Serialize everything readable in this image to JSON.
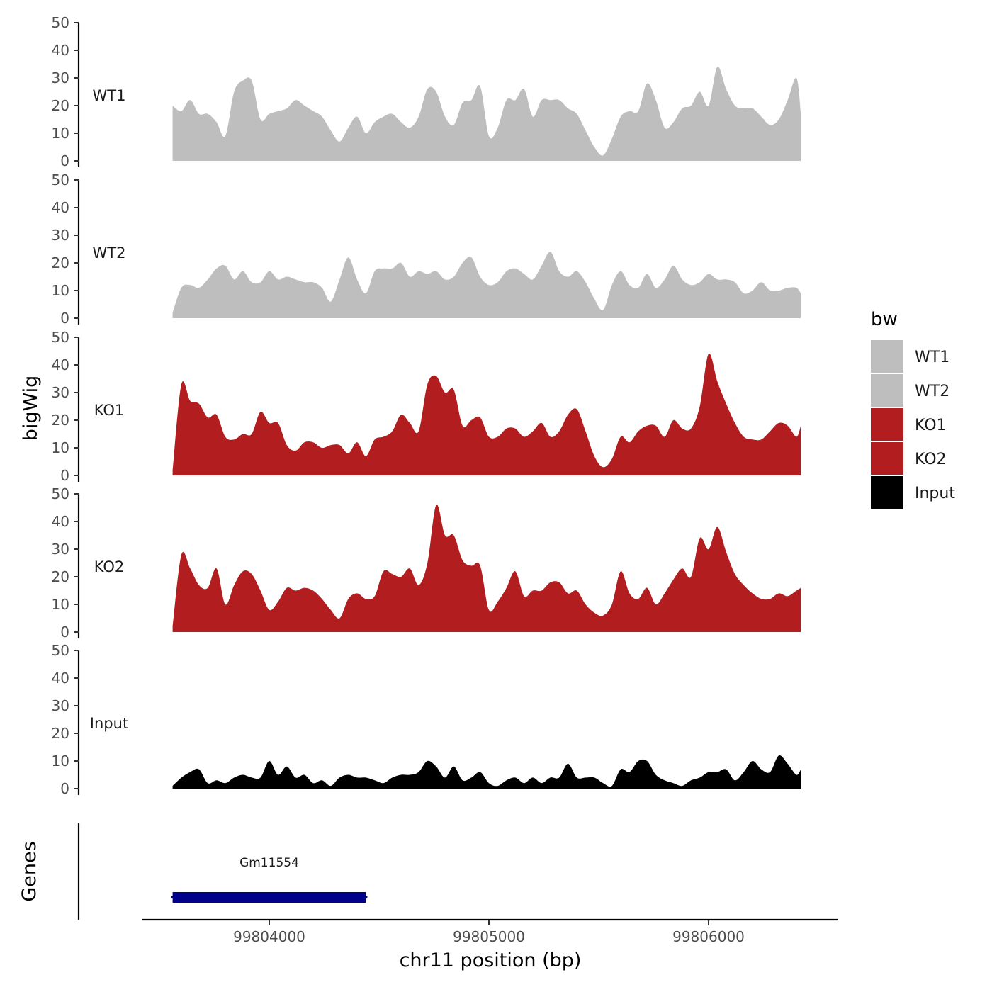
{
  "chart_data": {
    "type": "area",
    "xlabel": "chr11 position (bp)",
    "ylabel": "bigWig",
    "gene_panel_label": "Genes",
    "x_range": [
      99803550,
      99806430
    ],
    "x_ticks": [
      99804000,
      99805000,
      99806000
    ],
    "x_tick_labels": [
      "99804000",
      "99805000",
      "99806000"
    ],
    "ylim": [
      0,
      50
    ],
    "y_ticks": [
      0,
      10,
      20,
      30,
      40,
      50
    ],
    "y_tick_labels": [
      "0",
      "10",
      "20",
      "30",
      "40",
      "50"
    ],
    "legend": {
      "title": "bw",
      "position": "right",
      "items": [
        {
          "label": "WT1",
          "color": "#bebebe"
        },
        {
          "label": "WT2",
          "color": "#bebebe"
        },
        {
          "label": "KO1",
          "color": "#b21e20"
        },
        {
          "label": "KO2",
          "color": "#b21e20"
        },
        {
          "label": "Input",
          "color": "#000000"
        }
      ]
    },
    "x": [
      99803560,
      99803600,
      99803640,
      99803680,
      99803720,
      99803760,
      99803800,
      99803840,
      99803880,
      99803920,
      99803960,
      99804000,
      99804040,
      99804080,
      99804120,
      99804160,
      99804200,
      99804240,
      99804280,
      99804320,
      99804360,
      99804400,
      99804440,
      99804480,
      99804520,
      99804560,
      99804600,
      99804640,
      99804680,
      99804720,
      99804760,
      99804800,
      99804840,
      99804880,
      99804920,
      99804960,
      99805000,
      99805040,
      99805080,
      99805120,
      99805160,
      99805200,
      99805240,
      99805280,
      99805320,
      99805360,
      99805400,
      99805440,
      99805480,
      99805520,
      99805560,
      99805600,
      99805640,
      99805680,
      99805720,
      99805760,
      99805800,
      99805840,
      99805880,
      99805920,
      99805960,
      99806000,
      99806040,
      99806080,
      99806120,
      99806160,
      99806200,
      99806240,
      99806280,
      99806320,
      99806360,
      99806400,
      99806420
    ],
    "series": [
      {
        "name": "WT1",
        "color": "#bebebe",
        "values": [
          20,
          18,
          22,
          17,
          17,
          14,
          9,
          25,
          29,
          29,
          15,
          17,
          18,
          19,
          22,
          20,
          18,
          16,
          11,
          7,
          12,
          16,
          10,
          14,
          16,
          17,
          14,
          12,
          16,
          26,
          25,
          16,
          13,
          21,
          22,
          27,
          9,
          12,
          22,
          22,
          26,
          16,
          22,
          22,
          22,
          19,
          17,
          11,
          5,
          2,
          8,
          16,
          18,
          18,
          28,
          22,
          12,
          14,
          19,
          20,
          25,
          20,
          34,
          26,
          20,
          19,
          19,
          16,
          13,
          15,
          22,
          30,
          17
        ]
      },
      {
        "name": "WT2",
        "color": "#bebebe",
        "values": [
          2,
          11,
          12,
          11,
          14,
          18,
          19,
          14,
          17,
          13,
          13,
          17,
          14,
          15,
          14,
          13,
          13,
          11,
          6,
          14,
          22,
          14,
          9,
          17,
          18,
          18,
          20,
          15,
          17,
          16,
          17,
          14,
          15,
          20,
          22,
          15,
          12,
          13,
          17,
          18,
          16,
          14,
          19,
          24,
          17,
          15,
          17,
          13,
          7,
          3,
          12,
          17,
          12,
          11,
          16,
          11,
          14,
          19,
          14,
          12,
          13,
          16,
          14,
          14,
          13,
          9,
          10,
          13,
          10,
          10,
          11,
          11,
          9
        ]
      },
      {
        "name": "KO1",
        "color": "#b21e20",
        "values": [
          2,
          33,
          27,
          26,
          21,
          22,
          14,
          13,
          15,
          15,
          23,
          19,
          19,
          11,
          9,
          12,
          12,
          10,
          11,
          11,
          8,
          12,
          7,
          13,
          14,
          16,
          22,
          19,
          16,
          33,
          36,
          30,
          31,
          18,
          20,
          21,
          14,
          14,
          17,
          17,
          14,
          16,
          19,
          14,
          16,
          22,
          24,
          16,
          7,
          3,
          6,
          14,
          12,
          16,
          18,
          18,
          14,
          20,
          17,
          17,
          25,
          44,
          34,
          26,
          19,
          14,
          13,
          13,
          16,
          19,
          18,
          14,
          18
        ]
      },
      {
        "name": "KO2",
        "color": "#b21e20",
        "values": [
          2,
          28,
          23,
          17,
          16,
          23,
          10,
          17,
          22,
          21,
          15,
          8,
          11,
          16,
          15,
          16,
          15,
          12,
          8,
          5,
          12,
          14,
          12,
          13,
          22,
          21,
          20,
          23,
          17,
          25,
          46,
          35,
          35,
          26,
          24,
          24,
          8,
          11,
          16,
          22,
          13,
          15,
          15,
          18,
          18,
          14,
          15,
          10,
          7,
          6,
          10,
          22,
          14,
          12,
          16,
          10,
          14,
          19,
          23,
          20,
          34,
          30,
          38,
          29,
          21,
          17,
          14,
          12,
          12,
          14,
          13,
          15,
          16
        ]
      },
      {
        "name": "Input",
        "color": "#000000",
        "values": [
          1,
          4,
          6,
          7,
          2,
          3,
          2,
          4,
          5,
          4,
          4,
          10,
          5,
          8,
          4,
          5,
          2,
          3,
          1,
          4,
          5,
          4,
          4,
          3,
          2,
          4,
          5,
          5,
          6,
          10,
          8,
          4,
          8,
          3,
          4,
          6,
          2,
          1,
          3,
          4,
          2,
          4,
          2,
          4,
          4,
          9,
          4,
          4,
          4,
          2,
          1,
          7,
          6,
          10,
          10,
          5,
          3,
          2,
          1,
          3,
          4,
          6,
          6,
          7,
          3,
          6,
          10,
          7,
          6,
          12,
          9,
          5,
          7
        ]
      }
    ],
    "genes": [
      {
        "name": "Gm11554",
        "start": 99803560,
        "end": 99804440,
        "color": "#00008b"
      }
    ]
  }
}
